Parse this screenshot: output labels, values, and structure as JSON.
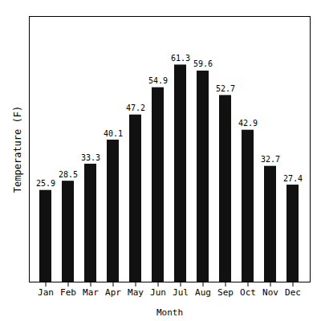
{
  "chart_data": {
    "type": "bar",
    "categories": [
      "Jan",
      "Feb",
      "Mar",
      "Apr",
      "May",
      "Jun",
      "Jul",
      "Aug",
      "Sep",
      "Oct",
      "Nov",
      "Dec"
    ],
    "values": [
      25.9,
      28.5,
      33.3,
      40.1,
      47.2,
      54.9,
      61.3,
      59.6,
      52.7,
      42.9,
      32.7,
      27.4
    ],
    "color": "#111111",
    "xlabel": "Month",
    "ylabel": "Temperature (F)",
    "ylim": [
      0,
      75
    ],
    "yticks": [],
    "tick_labels": "x",
    "data_labels": true,
    "grid": false
  }
}
